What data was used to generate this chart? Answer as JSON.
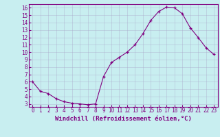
{
  "x": [
    0,
    1,
    2,
    3,
    4,
    5,
    6,
    7,
    8,
    9,
    10,
    11,
    12,
    13,
    14,
    15,
    16,
    17,
    18,
    19,
    20,
    21,
    22,
    23
  ],
  "y": [
    6.0,
    4.7,
    4.4,
    3.7,
    3.3,
    3.1,
    3.0,
    2.9,
    3.0,
    6.7,
    8.6,
    9.3,
    10.0,
    11.0,
    12.5,
    14.3,
    15.5,
    16.1,
    16.0,
    15.2,
    13.3,
    12.0,
    10.6,
    9.7
  ],
  "xlabel": "Windchill (Refroidissement éolien,°C)",
  "line_color": "#800080",
  "marker_color": "#800080",
  "bg_color": "#c8eef0",
  "grid_color": "#aaaacc",
  "ylim_min": 3,
  "ylim_max": 16,
  "xlim_min": 0,
  "xlim_max": 23,
  "yticks": [
    3,
    4,
    5,
    6,
    7,
    8,
    9,
    10,
    11,
    12,
    13,
    14,
    15,
    16
  ],
  "xticks": [
    0,
    1,
    2,
    3,
    4,
    5,
    6,
    7,
    8,
    9,
    10,
    11,
    12,
    13,
    14,
    15,
    16,
    17,
    18,
    19,
    20,
    21,
    22,
    23
  ],
  "tick_color": "#800080",
  "tick_fontsize": 5.5,
  "xlabel_fontsize": 6.5,
  "line_width": 0.8,
  "marker_size": 3.5
}
